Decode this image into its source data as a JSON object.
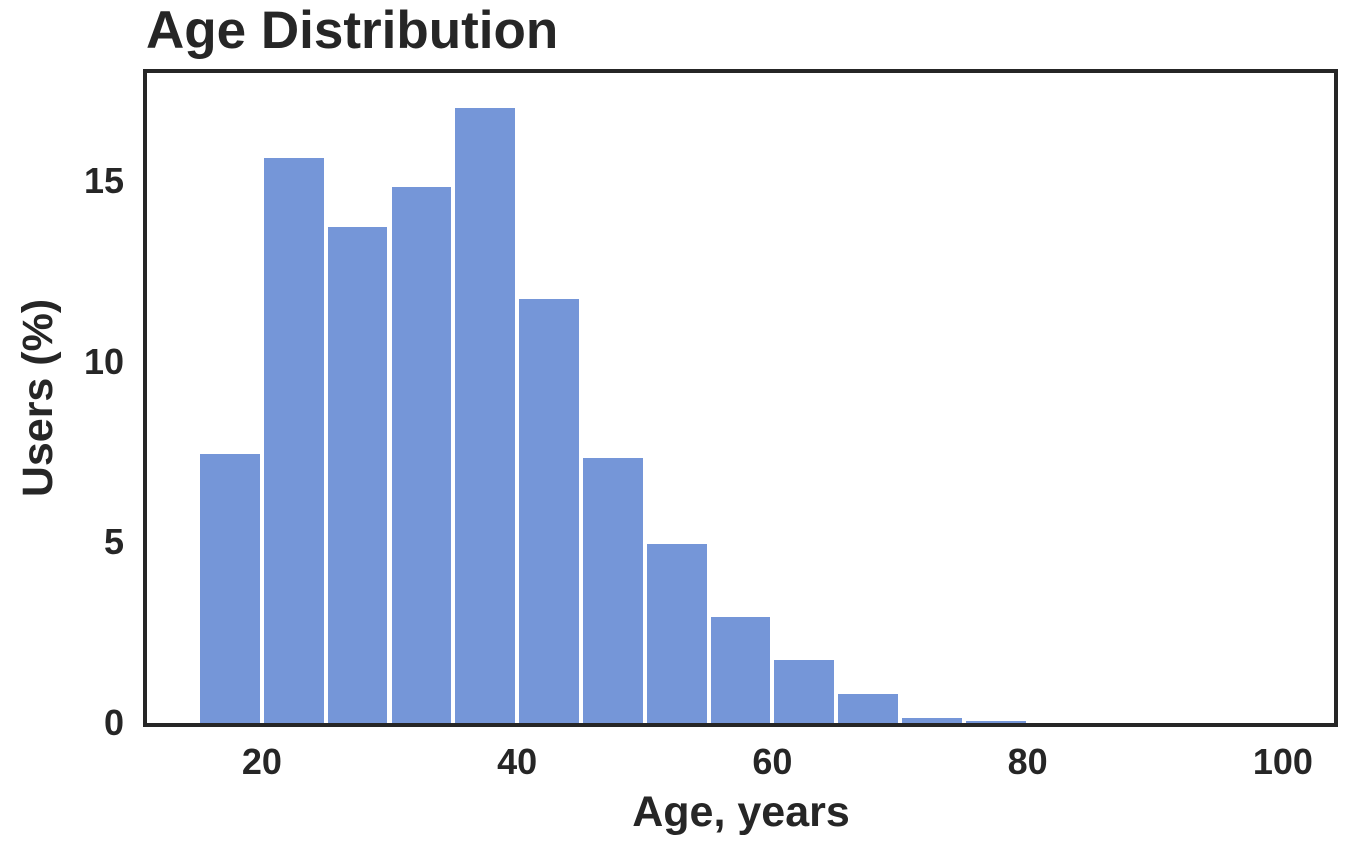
{
  "chart_data": {
    "type": "bar",
    "subtype": "histogram",
    "title": "Age Distribution",
    "xlabel": "Age, years",
    "ylabel": "Users (%)",
    "bin_edges": [
      15,
      20,
      25,
      30,
      35,
      40,
      45,
      50,
      55,
      60,
      65,
      70,
      75,
      80
    ],
    "values": [
      7.5,
      15.7,
      13.8,
      14.9,
      17.1,
      11.8,
      7.4,
      5.0,
      3.0,
      1.8,
      0.85,
      0.2,
      0.1
    ],
    "xlim": [
      11,
      104
    ],
    "ylim": [
      0,
      18
    ],
    "xticks": [
      20,
      40,
      60,
      80,
      100
    ],
    "yticks": [
      0,
      5,
      10,
      15
    ],
    "grid": false,
    "legend": null,
    "bar_color": "#7596d8",
    "bar_edge_color": "#ffffff",
    "axis_color": "#262626",
    "text_color": "#262626",
    "background_color": "#ffffff"
  }
}
